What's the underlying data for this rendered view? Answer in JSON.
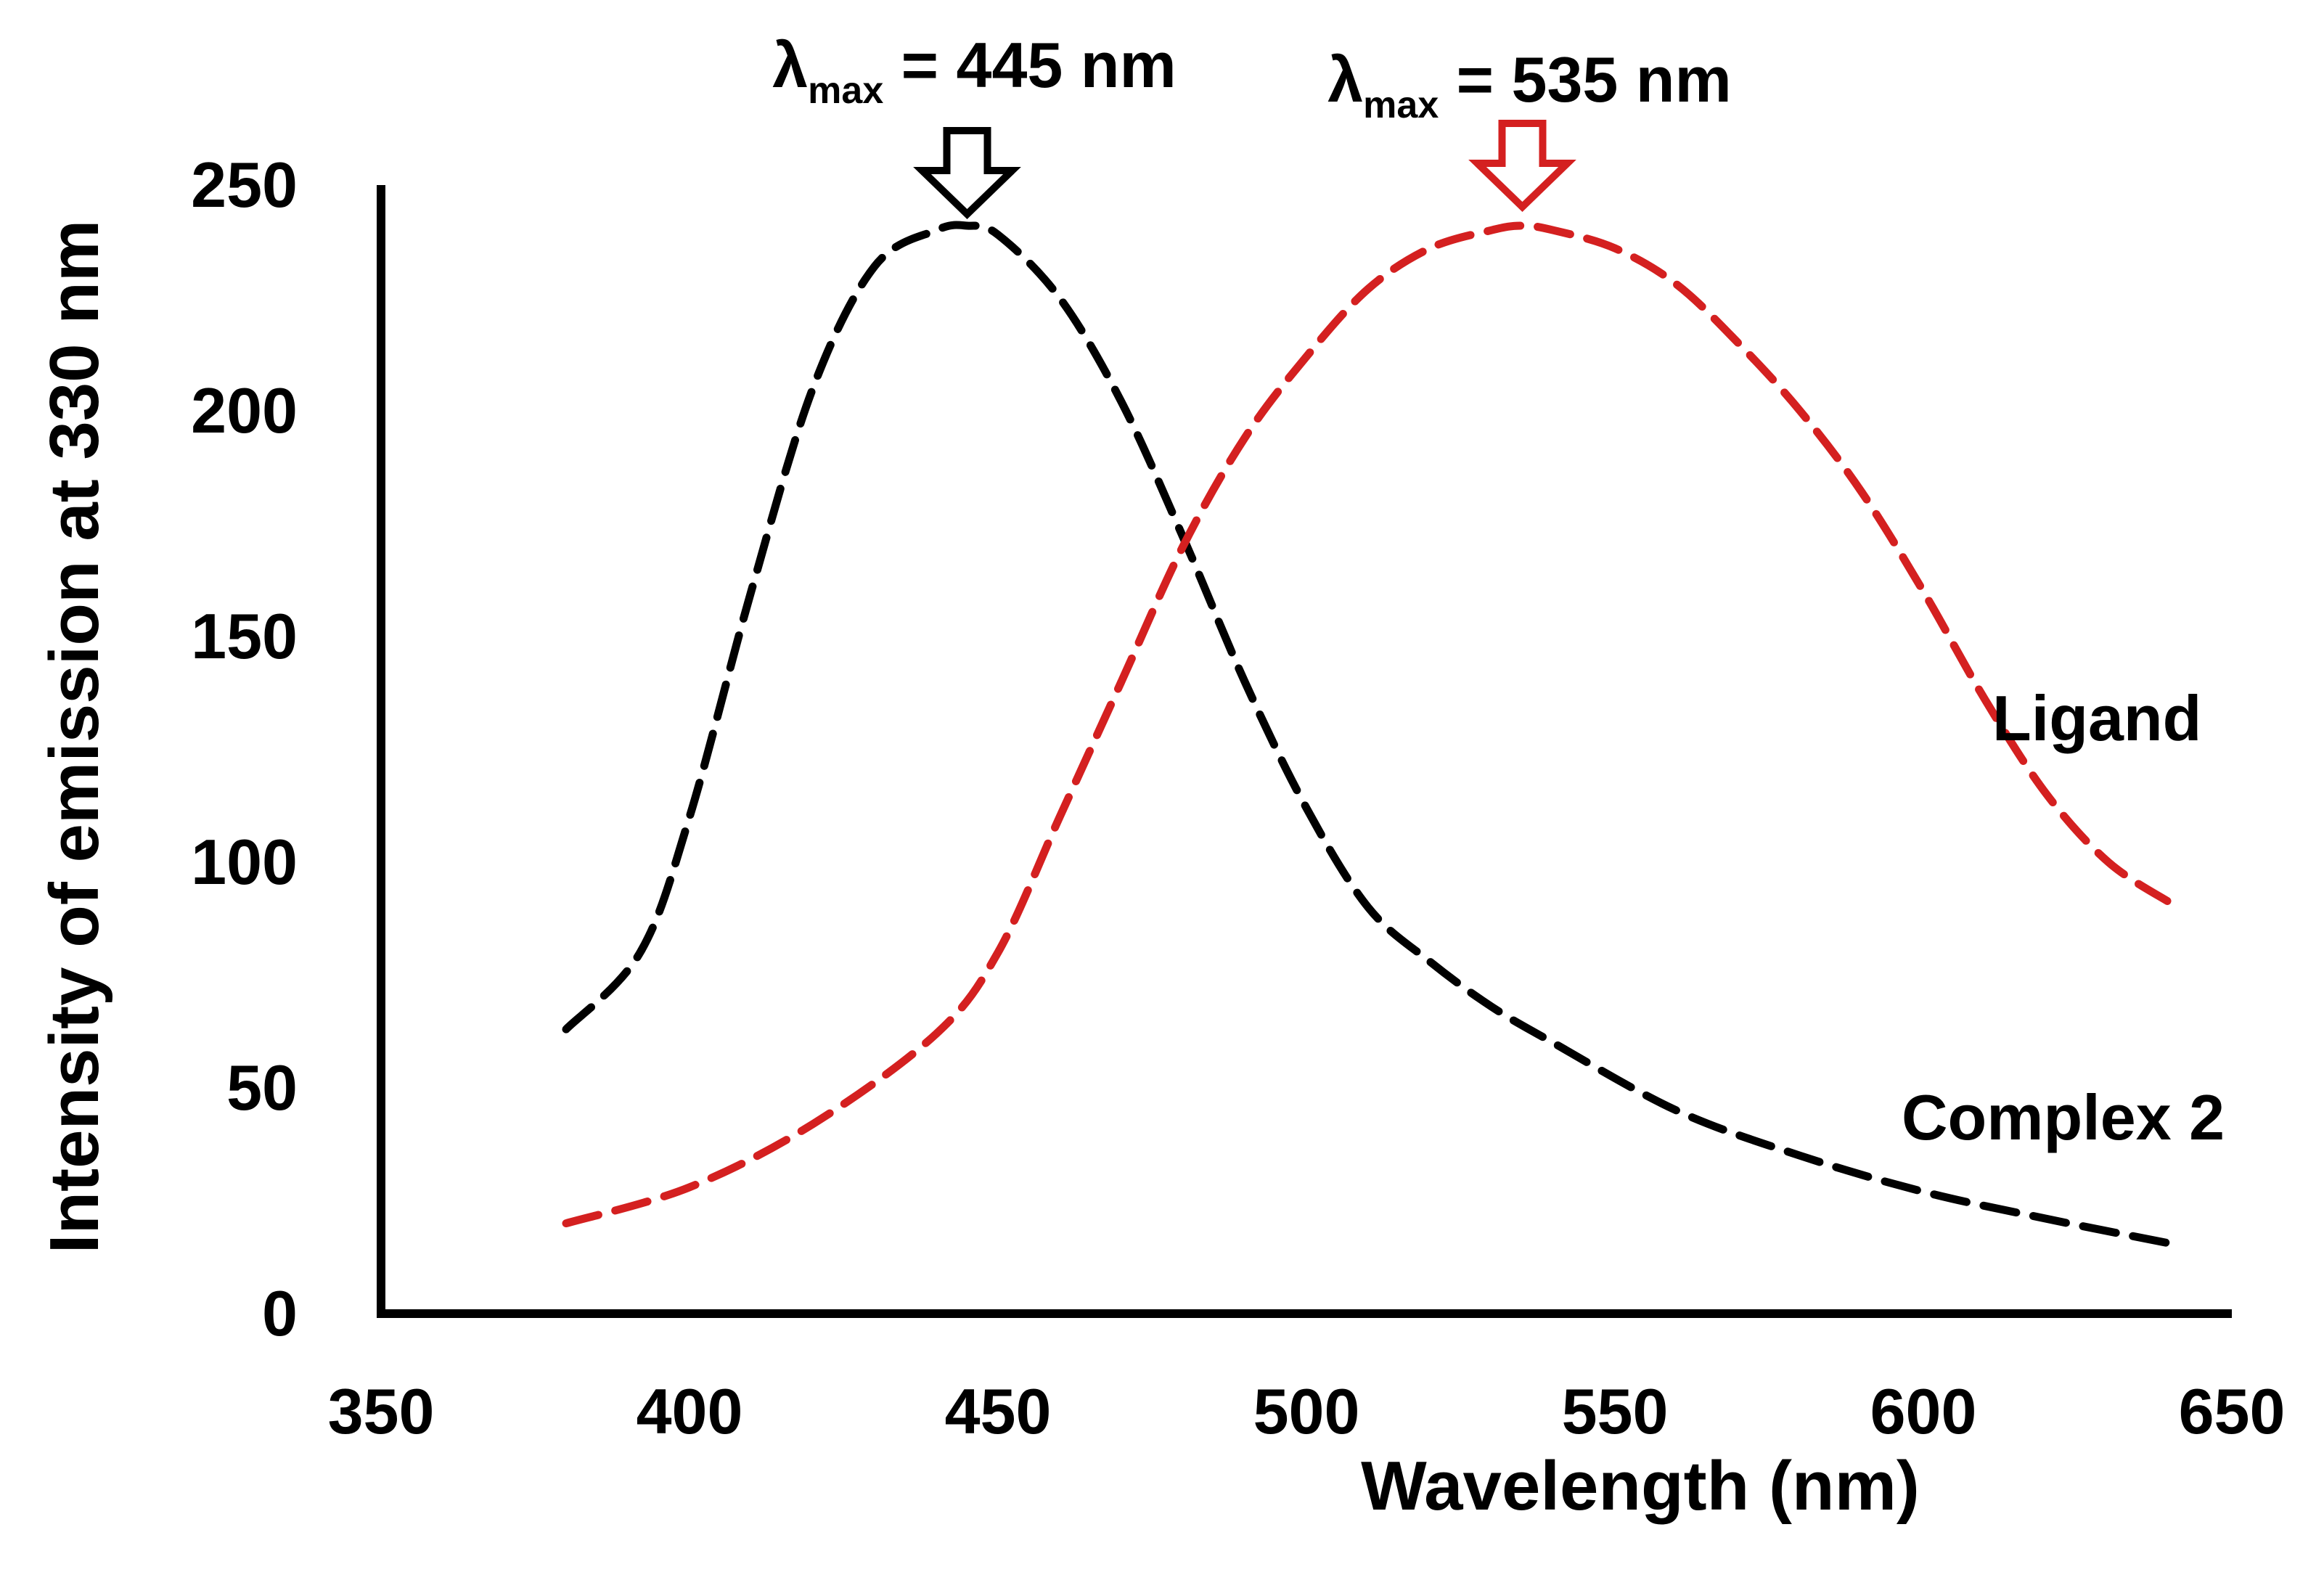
{
  "chart_data": {
    "type": "line",
    "xlabel": "Wavelength (nm)",
    "ylabel": "Intensity of emission at 330 nm",
    "xlim": [
      350,
      650
    ],
    "ylim": [
      0,
      250
    ],
    "x_ticks": [
      350,
      400,
      450,
      500,
      550,
      600,
      650
    ],
    "y_ticks": [
      0,
      50,
      100,
      150,
      200,
      250
    ],
    "grid": false,
    "series": [
      {
        "name": "Complex 2",
        "color": "#000000",
        "line_style": "dashed",
        "x": [
          380,
          392,
          400,
          410,
          420,
          430,
          440,
          445,
          450,
          460,
          470,
          480,
          490,
          500,
          510,
          520,
          530,
          540,
          560,
          580,
          600,
          620,
          642
        ],
        "y": [
          63,
          80,
          110,
          160,
          205,
          232,
          240,
          241,
          239,
          225,
          202,
          172,
          140,
          112,
          90,
          78,
          68,
          60,
          45,
          35,
          27,
          21,
          15
        ]
      },
      {
        "name": "Ligand",
        "color": "#d42020",
        "line_style": "dashed",
        "x": [
          380,
          400,
          420,
          440,
          450,
          460,
          470,
          480,
          490,
          500,
          510,
          520,
          530,
          535,
          540,
          550,
          560,
          570,
          580,
          590,
          600,
          610,
          620,
          630,
          640
        ],
        "y": [
          20,
          28,
          42,
          62,
          80,
          110,
          140,
          170,
          194,
          212,
          227,
          236,
          240,
          241,
          240,
          236,
          228,
          215,
          200,
          182,
          160,
          136,
          115,
          100,
          91
        ]
      }
    ],
    "annotations": [
      {
        "series": "Complex 2",
        "symbol": "λ",
        "subscript": "max",
        "text": "= 445 nm",
        "x": 445,
        "arrow_color": "#000000"
      },
      {
        "series": "Ligand",
        "symbol": "λ",
        "subscript": "max",
        "text": "= 535 nm",
        "x": 535,
        "arrow_color": "#d42020"
      }
    ]
  }
}
